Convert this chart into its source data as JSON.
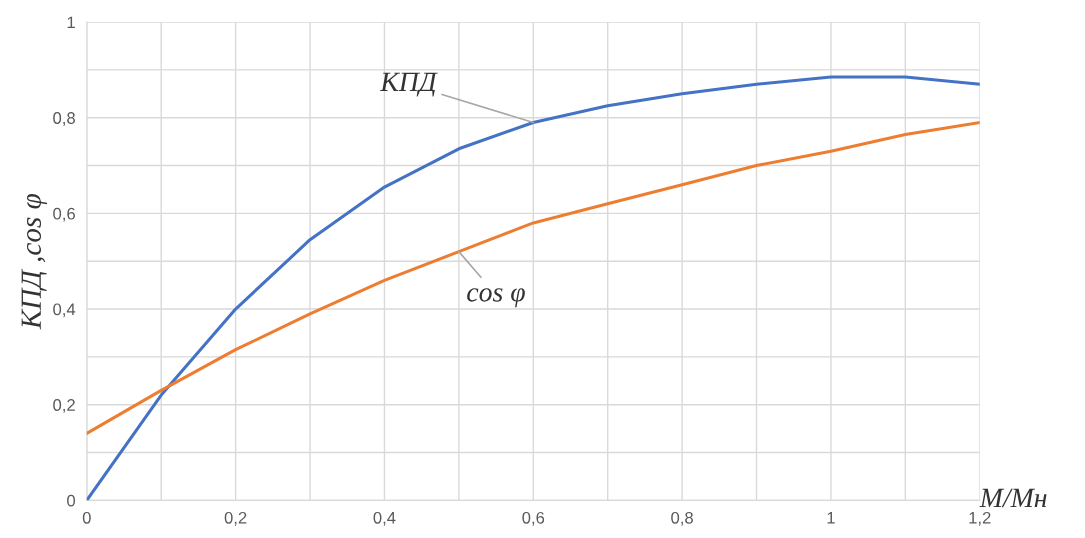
{
  "chart_data": {
    "type": "line",
    "xlabel": "М/Мн",
    "ylabel": "КПД ,cos φ",
    "x": [
      0,
      0.1,
      0.2,
      0.3,
      0.4,
      0.5,
      0.6,
      0.7,
      0.8,
      0.9,
      1.0,
      1.1,
      1.2
    ],
    "series": [
      {
        "name": "КПД",
        "color": "#4472c4",
        "values": [
          0,
          0.22,
          0.4,
          0.545,
          0.655,
          0.735,
          0.79,
          0.825,
          0.85,
          0.87,
          0.885,
          0.885,
          0.87
        ]
      },
      {
        "name": "cos φ",
        "color": "#ed7d31",
        "values": [
          0.14,
          0.23,
          0.315,
          0.39,
          0.46,
          0.52,
          0.58,
          0.62,
          0.66,
          0.7,
          0.73,
          0.765,
          0.79
        ]
      }
    ],
    "xlim": [
      0,
      1.2
    ],
    "ylim": [
      0,
      1
    ],
    "xticks": [
      0,
      {
        "value": 0.1,
        "label": null
      },
      {
        "value": 0.2,
        "label": "0,2"
      },
      {
        "value": 0.3,
        "label": null
      },
      {
        "value": 0.4,
        "label": "0,4"
      },
      {
        "value": 0.5,
        "label": null
      },
      {
        "value": 0.6,
        "label": "0,6"
      },
      {
        "value": 0.7,
        "label": null
      },
      {
        "value": 0.8,
        "label": "0,8"
      },
      {
        "value": 0.9,
        "label": null
      },
      1,
      {
        "value": 1.1,
        "label": null
      },
      {
        "value": 1.2,
        "label": "1,2"
      }
    ],
    "yticks": [
      0,
      {
        "value": 0.1,
        "label": null
      },
      {
        "value": 0.2,
        "label": "0,2"
      },
      {
        "value": 0.3,
        "label": null
      },
      {
        "value": 0.4,
        "label": "0,4"
      },
      {
        "value": 0.5,
        "label": null
      },
      {
        "value": 0.6,
        "label": "0,6"
      },
      {
        "value": 0.7,
        "label": null
      },
      {
        "value": 0.8,
        "label": "0,8"
      },
      {
        "value": 0.9,
        "label": null
      },
      1
    ],
    "grid": true,
    "legend": false,
    "marker": "none",
    "line_style": "solid"
  }
}
